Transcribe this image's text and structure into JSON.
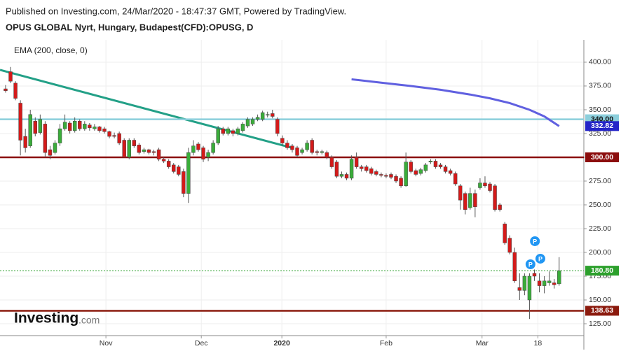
{
  "header": {
    "published": "Published on Investing.com, 24/Mar/2020 - 18:47:37 GMT, Powered by TradingView.",
    "instrument": "OPUS GLOBAL Nyrt, Hungary, Budapest(CFD):OPUSG, D"
  },
  "logo": {
    "name": "Investing",
    "suffix": ".com"
  },
  "chart_data": {
    "type": "candlestick",
    "indicator_label": "EMA (200, close, 0)",
    "up_color": "#3aad3a",
    "down_color": "#d41a1a",
    "xlim": [
      -1.13,
      117
    ],
    "ylim": [
      112.5,
      423.5
    ],
    "xticks": [
      {
        "value": 20.3,
        "label": "Nov"
      },
      {
        "value": 39.6,
        "label": "Dec"
      },
      {
        "value": 55.9,
        "label": "2020"
      },
      {
        "value": 77,
        "label": "Feb"
      },
      {
        "value": 96.4,
        "label": "Mar"
      },
      {
        "value": 107.7,
        "label": "18"
      }
    ],
    "yticks": [
      {
        "value": 125,
        "label": "125.00"
      },
      {
        "value": 150,
        "label": "150.00"
      },
      {
        "value": 175,
        "label": "175.00"
      },
      {
        "value": 200,
        "label": "200.00"
      },
      {
        "value": 225,
        "label": "225.00"
      },
      {
        "value": 250,
        "label": "250.00"
      },
      {
        "value": 275,
        "label": "275.00"
      },
      {
        "value": 300,
        "label": "300.00"
      },
      {
        "value": 325,
        "label": "325.00"
      },
      {
        "value": 350,
        "label": "350.00"
      },
      {
        "value": 375,
        "label": "375.00"
      },
      {
        "value": 400,
        "label": "400.00"
      }
    ],
    "grid": true,
    "ohlc": [
      [
        372,
        376,
        368,
        370
      ],
      [
        390,
        395,
        378,
        380
      ],
      [
        378,
        380,
        360,
        362
      ],
      [
        357,
        360,
        302,
        318
      ],
      [
        322,
        330,
        305,
        310
      ],
      [
        312,
        350,
        310,
        345
      ],
      [
        338,
        342,
        322,
        325
      ],
      [
        326,
        345,
        324,
        340
      ],
      [
        335,
        338,
        300,
        305
      ],
      [
        308,
        312,
        298,
        302
      ],
      [
        305,
        318,
        303,
        315
      ],
      [
        315,
        335,
        312,
        330
      ],
      [
        330,
        345,
        328,
        337
      ],
      [
        336,
        338,
        325,
        328
      ],
      [
        328,
        342,
        326,
        338
      ],
      [
        338,
        340,
        328,
        330
      ],
      [
        330,
        338,
        328,
        335
      ],
      [
        334,
        336,
        328,
        331
      ],
      [
        330,
        335,
        328,
        332
      ],
      [
        332,
        333,
        326,
        328
      ],
      [
        330,
        332,
        325,
        327
      ],
      [
        327,
        328,
        320,
        322
      ],
      [
        323,
        326,
        320,
        322
      ],
      [
        325,
        327,
        313,
        315
      ],
      [
        318,
        320,
        300,
        300
      ],
      [
        300,
        320,
        298,
        318
      ],
      [
        318,
        320,
        310,
        312
      ],
      [
        313,
        315,
        303,
        305
      ],
      [
        306,
        310,
        304,
        308
      ],
      [
        308,
        309,
        303,
        305
      ],
      [
        306,
        308,
        302,
        305
      ],
      [
        308,
        310,
        296,
        298
      ],
      [
        298,
        300,
        294,
        296
      ],
      [
        296,
        298,
        288,
        290
      ],
      [
        292,
        294,
        283,
        285
      ],
      [
        290,
        292,
        280,
        282
      ],
      [
        285,
        288,
        258,
        262
      ],
      [
        262,
        310,
        252,
        305
      ],
      [
        305,
        318,
        302,
        312
      ],
      [
        314,
        316,
        306,
        308
      ],
      [
        310,
        312,
        295,
        298
      ],
      [
        300,
        308,
        296,
        305
      ],
      [
        305,
        318,
        303,
        315
      ],
      [
        315,
        333,
        313,
        330
      ],
      [
        330,
        332,
        323,
        325
      ],
      [
        325,
        332,
        323,
        330
      ],
      [
        328,
        330,
        322,
        325
      ],
      [
        325,
        332,
        323,
        330
      ],
      [
        328,
        337,
        326,
        335
      ],
      [
        333,
        342,
        331,
        340
      ],
      [
        335,
        342,
        333,
        340
      ],
      [
        340,
        345,
        338,
        342
      ],
      [
        340,
        349,
        338,
        347
      ],
      [
        345,
        348,
        342,
        345
      ],
      [
        346,
        350,
        341,
        343
      ],
      [
        340,
        342,
        322,
        325
      ],
      [
        320,
        323,
        312,
        315
      ],
      [
        315,
        318,
        308,
        310
      ],
      [
        312,
        314,
        305,
        308
      ],
      [
        310,
        312,
        300,
        302
      ],
      [
        305,
        310,
        303,
        308
      ],
      [
        308,
        318,
        306,
        315
      ],
      [
        318,
        320,
        303,
        305
      ],
      [
        306,
        308,
        302,
        305
      ],
      [
        305,
        308,
        303,
        306
      ],
      [
        305,
        307,
        298,
        300
      ],
      [
        300,
        302,
        288,
        290
      ],
      [
        295,
        297,
        278,
        280
      ],
      [
        280,
        285,
        278,
        282
      ],
      [
        282,
        284,
        276,
        278
      ],
      [
        278,
        302,
        276,
        298
      ],
      [
        300,
        305,
        288,
        290
      ],
      [
        290,
        292,
        285,
        288
      ],
      [
        290,
        292,
        284,
        286
      ],
      [
        288,
        290,
        281,
        283
      ],
      [
        285,
        287,
        280,
        282
      ],
      [
        282,
        284,
        279,
        281
      ],
      [
        281,
        283,
        278,
        280
      ],
      [
        282,
        284,
        277,
        279
      ],
      [
        280,
        282,
        273,
        275
      ],
      [
        278,
        280,
        268,
        270
      ],
      [
        270,
        305,
        269,
        295
      ],
      [
        295,
        297,
        283,
        285
      ],
      [
        286,
        288,
        280,
        282
      ],
      [
        283,
        289,
        281,
        287
      ],
      [
        286,
        294,
        284,
        292
      ],
      [
        295,
        298,
        293,
        296
      ],
      [
        296,
        298,
        288,
        290
      ],
      [
        292,
        294,
        288,
        290
      ],
      [
        290,
        292,
        283,
        285
      ],
      [
        286,
        288,
        281,
        283
      ],
      [
        283,
        285,
        270,
        272
      ],
      [
        270,
        272,
        245,
        255
      ],
      [
        262,
        264,
        240,
        245
      ],
      [
        247,
        268,
        245,
        262
      ],
      [
        262,
        266,
        237,
        248
      ],
      [
        268,
        278,
        266,
        273
      ],
      [
        273,
        280,
        268,
        270
      ],
      [
        272,
        274,
        263,
        265
      ],
      [
        270,
        272,
        243,
        245
      ],
      [
        250,
        252,
        243,
        245
      ],
      [
        230,
        232,
        208,
        210
      ],
      [
        215,
        218,
        198,
        200
      ],
      [
        200,
        205,
        168,
        170
      ],
      [
        163,
        178,
        150,
        160
      ],
      [
        160,
        178,
        155,
        175
      ],
      [
        150,
        178,
        130,
        175
      ],
      [
        178,
        182,
        170,
        175
      ],
      [
        170,
        178,
        158,
        165
      ],
      [
        165,
        175,
        157,
        170
      ],
      [
        168,
        180,
        165,
        170
      ],
      [
        168,
        172,
        162,
        166
      ],
      [
        167,
        195,
        165,
        180.8
      ]
    ],
    "ema": {
      "color": "#6060e0",
      "x": [
        70,
        76,
        82,
        88,
        94,
        98,
        102,
        106,
        109,
        112
      ],
      "values": [
        382,
        378.5,
        375,
        371,
        366,
        362,
        357,
        350,
        343,
        332.82
      ],
      "label": "332.82",
      "label_color": "#2424c8"
    },
    "trendline": {
      "color": "#23a087",
      "x": [
        -1.13,
        57.7
      ],
      "values": [
        391.9,
        310.3
      ]
    },
    "hlines": [
      {
        "value": 340,
        "label": "340.00",
        "color": "#8ccfdc",
        "label_color": "#8ccfdc",
        "text_color": "#111"
      },
      {
        "value": 300,
        "label": "300.00",
        "color": "#8b0d0d",
        "label_color": "#8b0d0d",
        "text_color": "#fff"
      },
      {
        "value": 180.8,
        "label": "180.80",
        "color": "#2ca02c",
        "label_color": "#2ca02c",
        "text_color": "#fff",
        "dotted": true
      },
      {
        "value": 138.63,
        "label": "138.63",
        "color": "#8b1a0d",
        "label_color": "#8b1a0d",
        "text_color": "#fff"
      }
    ],
    "markers": {
      "label": "P",
      "color": "#2196f3",
      "x": [
        107.1,
        106.2,
        108.2
      ],
      "values": [
        211.8,
        187.5,
        193.4
      ]
    }
  }
}
